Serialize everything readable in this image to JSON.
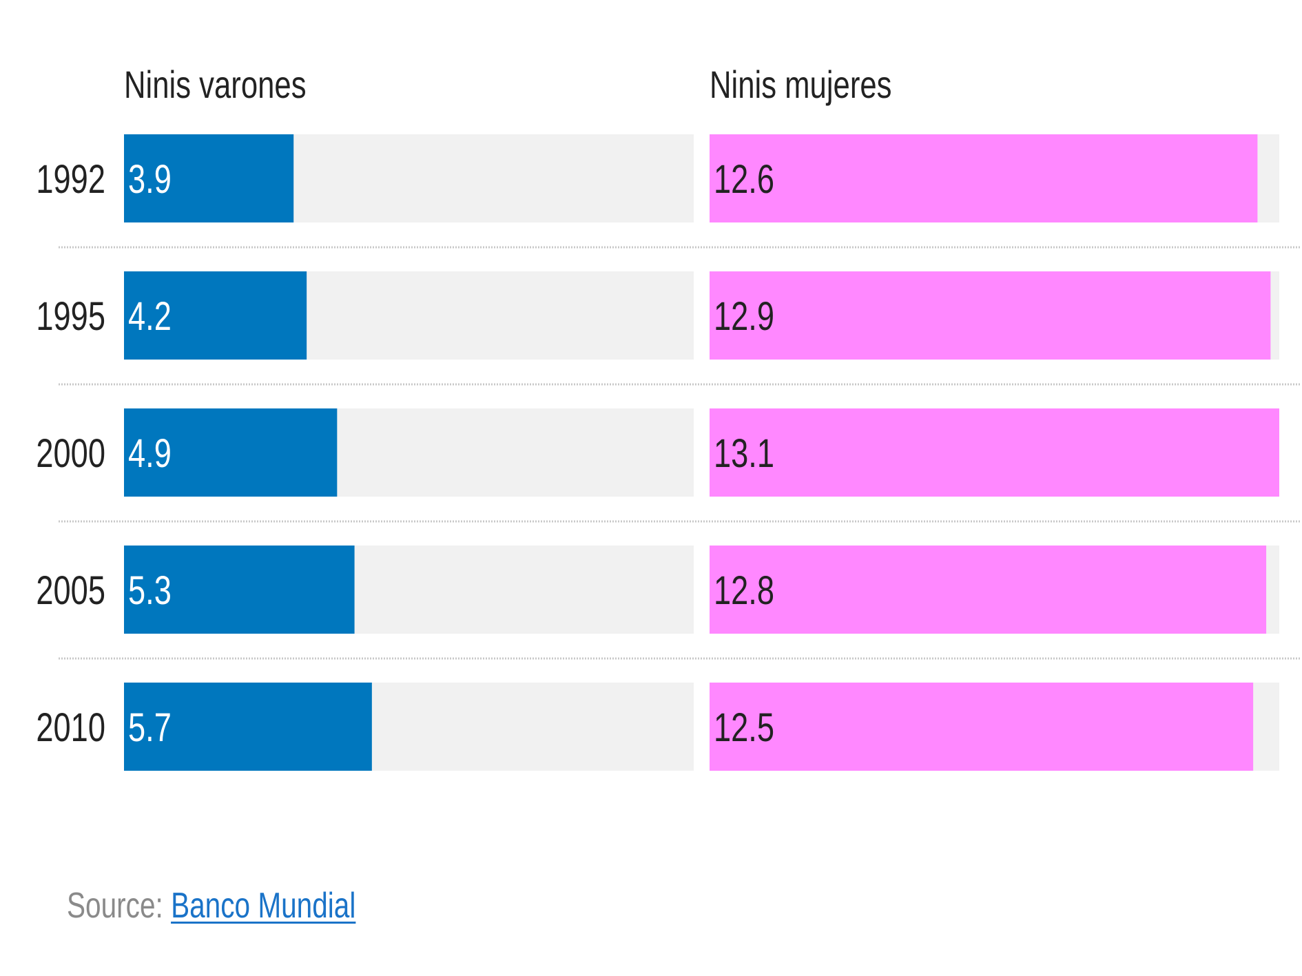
{
  "chart_data": {
    "type": "bar",
    "categories": [
      "1992",
      "1995",
      "2000",
      "2005",
      "2010"
    ],
    "series": [
      {
        "name": "Ninis varones",
        "values": [
          3.9,
          4.2,
          4.9,
          5.3,
          5.7
        ]
      },
      {
        "name": "Ninis mujeres",
        "values": [
          12.6,
          12.9,
          13.1,
          12.8,
          12.5
        ]
      }
    ],
    "colors": {
      "varones": "#0077be",
      "mujeres": "#ff88ff",
      "track": "#f1f1f1"
    },
    "varones_max": 13.1,
    "mujeres_max": 13.1
  },
  "source": {
    "label": "Source:",
    "link_text": "Banco Mundial"
  }
}
